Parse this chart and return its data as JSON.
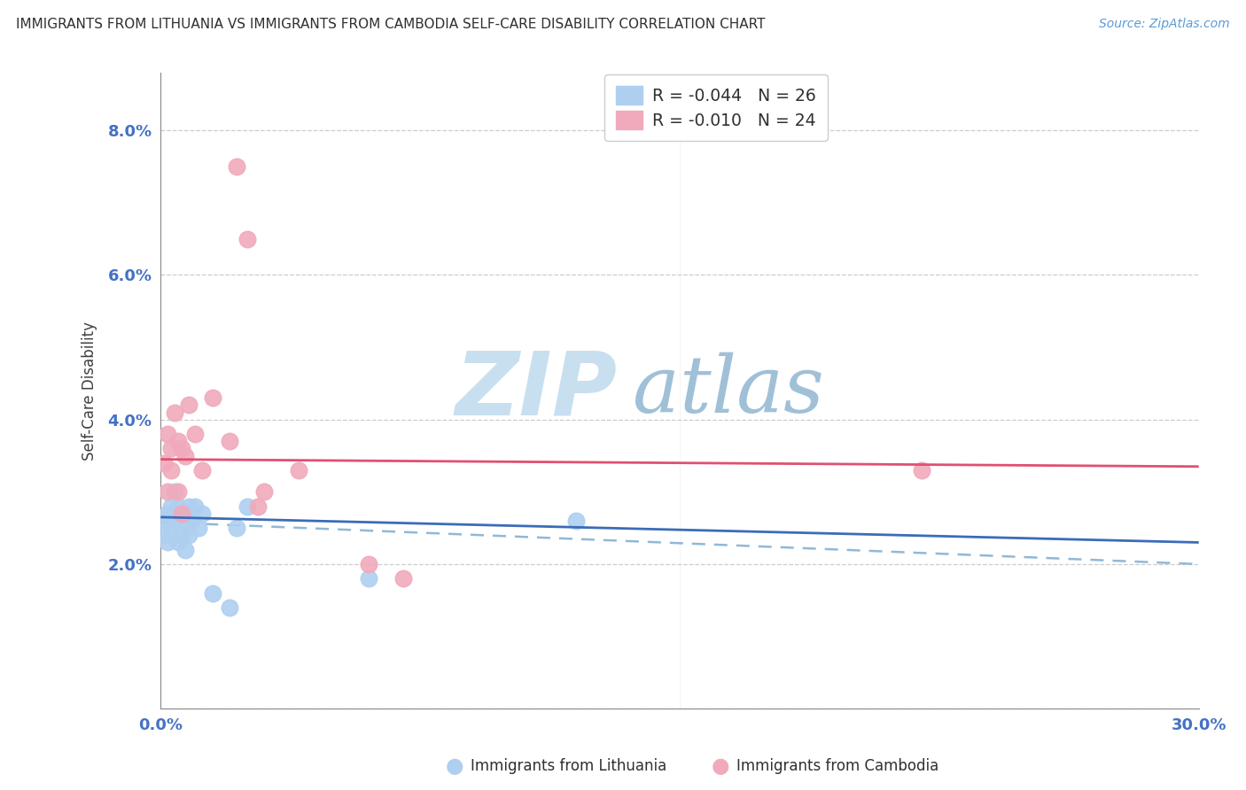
{
  "title": "IMMIGRANTS FROM LITHUANIA VS IMMIGRANTS FROM CAMBODIA SELF-CARE DISABILITY CORRELATION CHART",
  "source": "Source: ZipAtlas.com",
  "ylabel_label": "Self-Care Disability",
  "xlim": [
    0.0,
    0.3
  ],
  "ylim": [
    0.0,
    0.088
  ],
  "color_lithuania": "#aecff0",
  "color_cambodia": "#f0aabb",
  "line_color_lithuania": "#3a6cb8",
  "line_color_cambodia": "#e05070",
  "dashed_line_color": "#90b8d8",
  "watermark_zip_color": "#c8dff0",
  "watermark_atlas_color": "#a0c0d8",
  "background_color": "#ffffff",
  "grid_color": "#cccccc",
  "title_color": "#303030",
  "tick_color": "#4472c4",
  "legend_bottom_label1": "Immigrants from Lithuania",
  "legend_bottom_label2": "Immigrants from Cambodia",
  "legend_r1": "-0.044",
  "legend_n1": "26",
  "legend_r2": "-0.010",
  "legend_n2": "24",
  "lithuania_x": [
    0.001,
    0.001,
    0.002,
    0.002,
    0.003,
    0.003,
    0.004,
    0.004,
    0.005,
    0.005,
    0.006,
    0.006,
    0.007,
    0.007,
    0.008,
    0.008,
    0.009,
    0.01,
    0.011,
    0.012,
    0.015,
    0.02,
    0.022,
    0.025,
    0.06,
    0.12
  ],
  "lithuania_y": [
    0.026,
    0.024,
    0.027,
    0.023,
    0.028,
    0.025,
    0.03,
    0.026,
    0.028,
    0.023,
    0.027,
    0.024,
    0.026,
    0.022,
    0.028,
    0.024,
    0.026,
    0.028,
    0.025,
    0.027,
    0.016,
    0.014,
    0.025,
    0.028,
    0.018,
    0.026
  ],
  "cambodia_x": [
    0.001,
    0.002,
    0.002,
    0.003,
    0.003,
    0.004,
    0.005,
    0.005,
    0.006,
    0.006,
    0.007,
    0.008,
    0.01,
    0.012,
    0.015,
    0.02,
    0.022,
    0.025,
    0.03,
    0.04,
    0.06,
    0.22,
    0.028,
    0.07
  ],
  "cambodia_y": [
    0.034,
    0.03,
    0.038,
    0.036,
    0.033,
    0.041,
    0.037,
    0.03,
    0.036,
    0.027,
    0.035,
    0.042,
    0.038,
    0.033,
    0.043,
    0.037,
    0.075,
    0.065,
    0.03,
    0.033,
    0.02,
    0.033,
    0.028,
    0.018
  ],
  "camb_line_y_start": 0.0345,
  "camb_line_y_end": 0.0335,
  "lith_line_y_start": 0.0265,
  "lith_line_y_end": 0.023,
  "dash_line_y_start": 0.0258,
  "dash_line_y_end": 0.02
}
